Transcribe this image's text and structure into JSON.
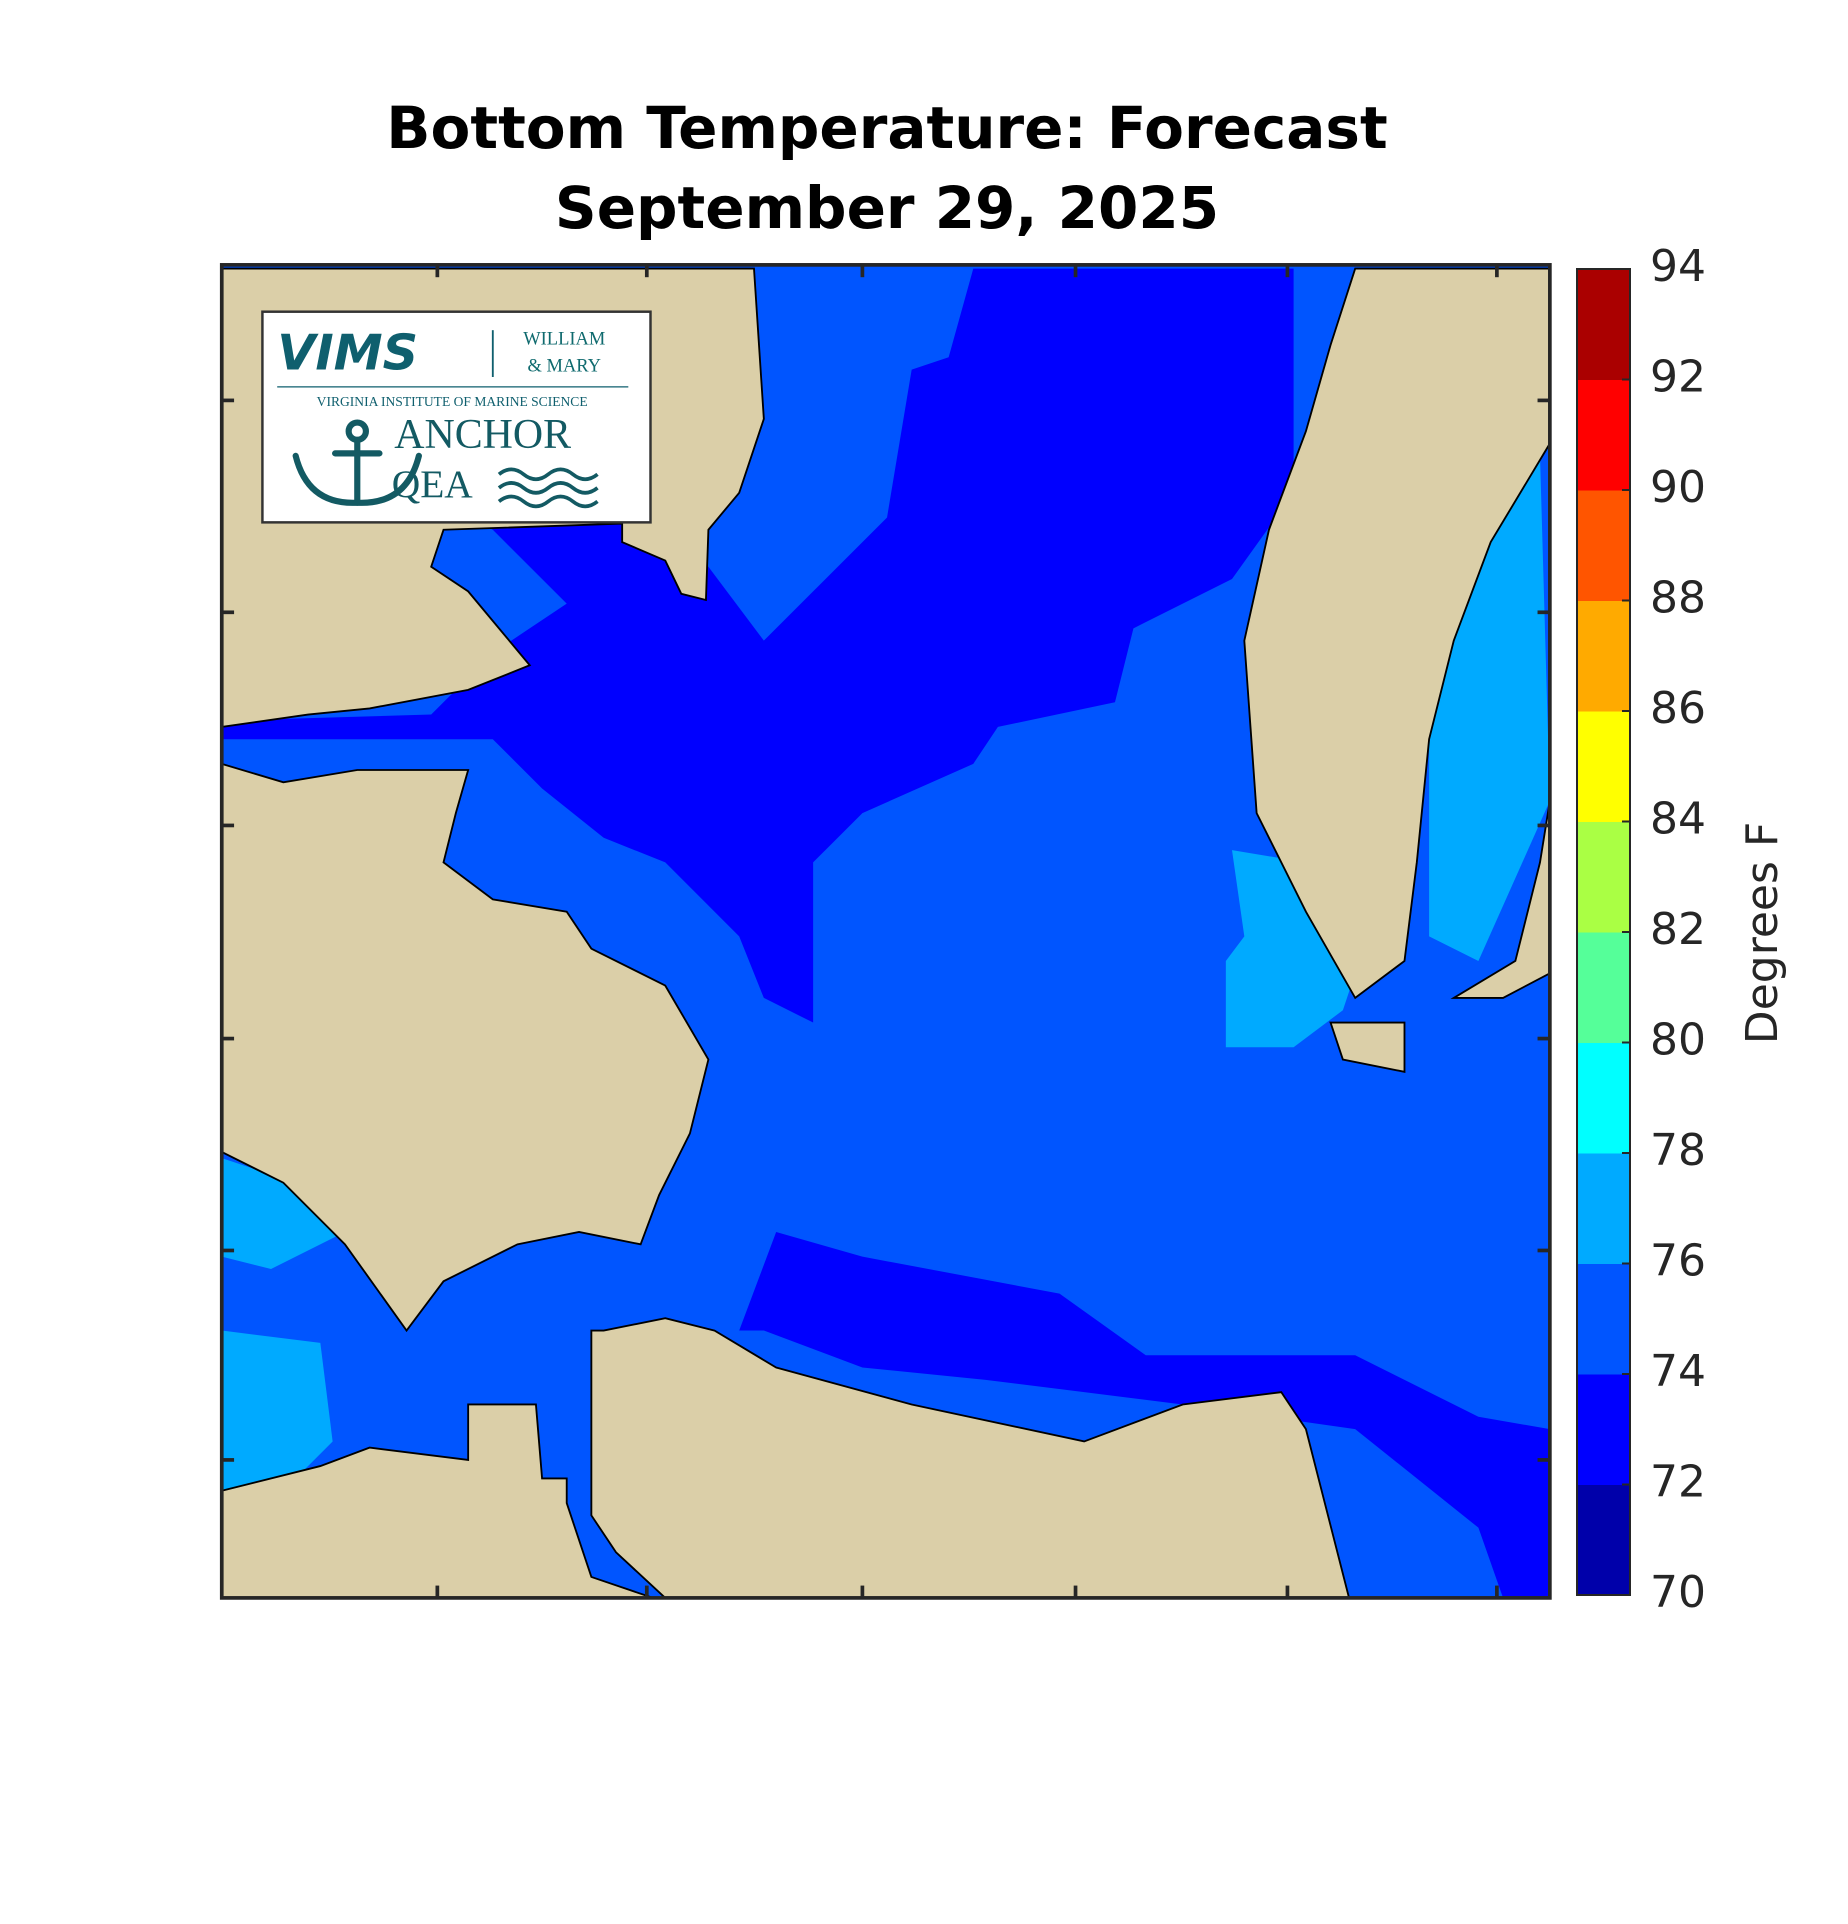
{
  "title": [
    "Bottom Temperature: Forecast",
    "September 29, 2025"
  ],
  "logo": {
    "vims": "VIMS",
    "william": "WILLIAM",
    "mary": "& MARY",
    "institute": "VIRGINIA INSTITUTE OF MARINE SCIENCE",
    "anchor": "ANCHOR",
    "qea": "QEA"
  },
  "colorbar": {
    "label": "Degrees F",
    "lim": [
      70,
      94
    ],
    "ticks": [
      70,
      72,
      74,
      76,
      78,
      80,
      82,
      84,
      86,
      88,
      90,
      92,
      94
    ],
    "colors": [
      "#0000aa",
      "#0000ff",
      "#0055ff",
      "#00aaff",
      "#00ffff",
      "#55ff99",
      "#aaff44",
      "#ffff00",
      "#ffaa00",
      "#ff5500",
      "#ff0000",
      "#aa0000"
    ]
  }
}
